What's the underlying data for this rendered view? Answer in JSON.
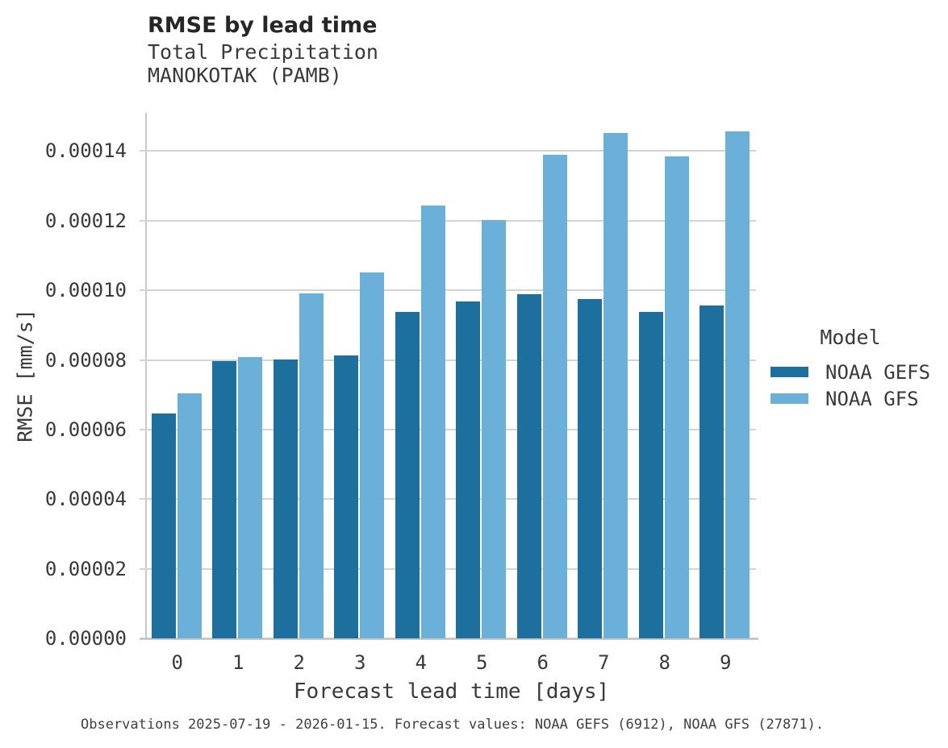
{
  "chart_data": {
    "type": "bar",
    "title": "RMSE by lead time",
    "subtitle_lines": [
      "Total Precipitation",
      "MANOKOTAK (PAMB)"
    ],
    "xlabel": "Forecast lead time [days]",
    "ylabel": "RMSE [mm/s]",
    "legend_title": "Model",
    "legend_position": "right",
    "grid": true,
    "categories": [
      "0",
      "1",
      "2",
      "3",
      "4",
      "5",
      "6",
      "7",
      "8",
      "9"
    ],
    "ylim": [
      0,
      0.000151
    ],
    "yticks": [
      {
        "value": 0.0,
        "label": "0.00000"
      },
      {
        "value": 2e-05,
        "label": "0.00002"
      },
      {
        "value": 4e-05,
        "label": "0.00004"
      },
      {
        "value": 6e-05,
        "label": "0.00006"
      },
      {
        "value": 8e-05,
        "label": "0.00008"
      },
      {
        "value": 0.0001,
        "label": "0.00010"
      },
      {
        "value": 0.00012,
        "label": "0.00012"
      },
      {
        "value": 0.00014,
        "label": "0.00014"
      }
    ],
    "series": [
      {
        "name": "NOAA GEFS",
        "color": "#1d6f9e",
        "values": [
          6.47e-05,
          7.96e-05,
          8.01e-05,
          8.14e-05,
          9.39e-05,
          9.67e-05,
          9.9e-05,
          9.76e-05,
          9.39e-05,
          9.57e-05
        ]
      },
      {
        "name": "NOAA GFS",
        "color": "#6bb0d8",
        "values": [
          7.04e-05,
          8.09e-05,
          9.91e-05,
          0.0001051,
          0.0001244,
          0.0001202,
          0.0001389,
          0.0001452,
          0.0001386,
          0.0001456
        ]
      }
    ],
    "caption": "Observations 2025-07-19 - 2026-01-15. Forecast values: NOAA GEFS (6912), NOAA GFS (27871)."
  },
  "colors": {
    "background": "#ffffff",
    "grid": "#d4d4d4",
    "spine": "#c9c9c9",
    "title_text": "#262626",
    "body_text": "#3a3a3a"
  }
}
